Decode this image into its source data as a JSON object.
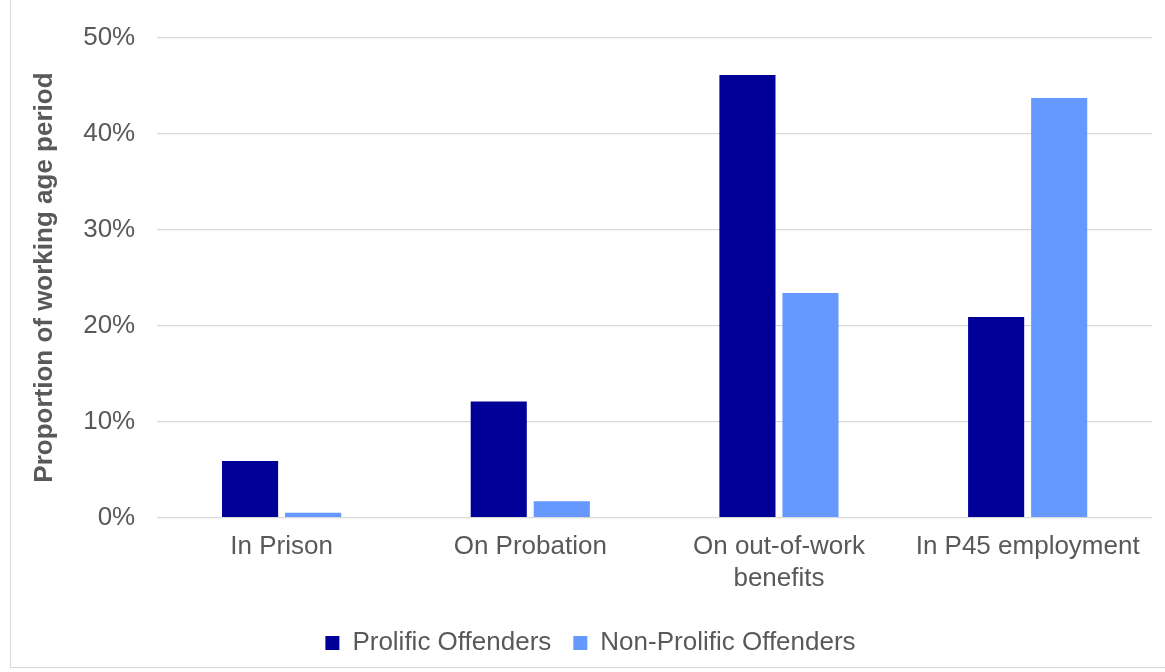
{
  "chart_data": {
    "type": "bar",
    "ylabel": "Proportion of working age period",
    "categories": [
      "In Prison",
      "On Probation",
      "On out-of-work benefits",
      "In P45 employment"
    ],
    "series": [
      {
        "name": "Prolific Offenders",
        "color": "#000099",
        "values": [
          5.9,
          12.1,
          46.1,
          20.9
        ]
      },
      {
        "name": "Non-Prolific Offenders",
        "color": "#6699ff",
        "values": [
          0.5,
          1.7,
          23.4,
          43.7
        ]
      }
    ],
    "ylim": [
      0,
      50
    ],
    "yticks": [
      {
        "value": 0,
        "label": "0%"
      },
      {
        "value": 10,
        "label": "10%"
      },
      {
        "value": 20,
        "label": "20%"
      },
      {
        "value": 30,
        "label": "30%"
      },
      {
        "value": 40,
        "label": "40%"
      },
      {
        "value": 50,
        "label": "50%"
      }
    ],
    "grid": "y",
    "legend": "bottom"
  }
}
